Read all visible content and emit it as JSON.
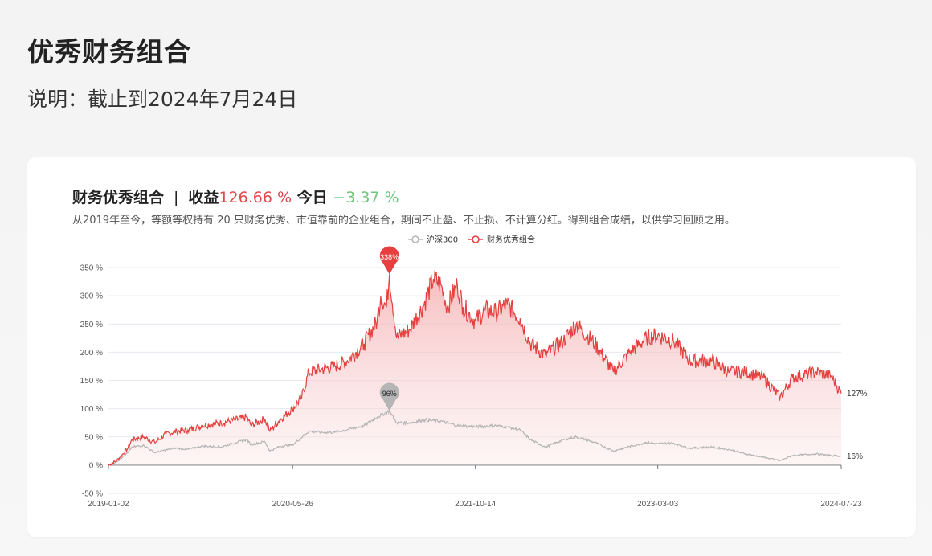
{
  "page": {
    "title": "优秀财务组合",
    "description": "说明：截止到2024年7月24日"
  },
  "header": {
    "name": "财务优秀组合",
    "separator": "|",
    "return_label": "收益",
    "return_value": "126.66 %",
    "today_label": "今日",
    "today_value": "−3.37 %",
    "subtitle": "从2019年至今，等额等权持有 20 只财务优秀、市值靠前的企业组合，期间不止盈、不止损、不计算分红。得到组合成绩，以供学习回顾之用。"
  },
  "colors": {
    "portfolio": "#e5403f",
    "benchmark": "#b5b5b5",
    "area_top": "#f4a6a8",
    "gridline": "#e6e9f0"
  },
  "chart_data": {
    "type": "area",
    "y_ticks": [
      "350 %",
      "300 %",
      "250 %",
      "200 %",
      "150 %",
      "100 %",
      "50 %",
      "0 %",
      "-50 %"
    ],
    "y_tick_values": [
      350,
      300,
      250,
      200,
      150,
      100,
      50,
      0,
      -50
    ],
    "ylim": [
      -50,
      350
    ],
    "x_ticks": [
      "2019-01-02",
      "2020-05-26",
      "2021-10-14",
      "2023-03-03",
      "2024-07-23"
    ],
    "xlim": [
      "2019-01-02",
      "2024-07-23"
    ],
    "grid": true,
    "legend_position": "top-center",
    "series": [
      {
        "name": "沪深300",
        "color_key": "benchmark",
        "end_label": "16%",
        "max_label": "96%",
        "points": [
          [
            "2019-01-02",
            0
          ],
          [
            "2019-01-25",
            6
          ],
          [
            "2019-02-25",
            22
          ],
          [
            "2019-03-08",
            32
          ],
          [
            "2019-04-10",
            35
          ],
          [
            "2019-05-10",
            22
          ],
          [
            "2019-06-10",
            27
          ],
          [
            "2019-07-10",
            30
          ],
          [
            "2019-08-10",
            28
          ],
          [
            "2019-09-20",
            34
          ],
          [
            "2019-11-10",
            32
          ],
          [
            "2019-12-20",
            40
          ],
          [
            "2020-01-20",
            45
          ],
          [
            "2020-02-01",
            36
          ],
          [
            "2020-03-10",
            42
          ],
          [
            "2020-03-24",
            25
          ],
          [
            "2020-04-20",
            33
          ],
          [
            "2020-05-26",
            36
          ],
          [
            "2020-07-10",
            60
          ],
          [
            "2020-08-15",
            58
          ],
          [
            "2020-09-20",
            58
          ],
          [
            "2020-10-25",
            63
          ],
          [
            "2020-12-10",
            70
          ],
          [
            "2021-01-15",
            85
          ],
          [
            "2021-02-18",
            96
          ],
          [
            "2021-03-10",
            75
          ],
          [
            "2021-04-15",
            75
          ],
          [
            "2021-05-25",
            80
          ],
          [
            "2021-07-10",
            78
          ],
          [
            "2021-08-25",
            70
          ],
          [
            "2021-10-14",
            68
          ],
          [
            "2021-12-10",
            70
          ],
          [
            "2022-01-10",
            68
          ],
          [
            "2022-02-15",
            62
          ],
          [
            "2022-03-15",
            45
          ],
          [
            "2022-04-26",
            32
          ],
          [
            "2022-06-15",
            45
          ],
          [
            "2022-07-20",
            50
          ],
          [
            "2022-09-10",
            40
          ],
          [
            "2022-10-31",
            25
          ],
          [
            "2022-12-15",
            33
          ],
          [
            "2023-01-31",
            40
          ],
          [
            "2023-03-03",
            38
          ],
          [
            "2023-04-15",
            39
          ],
          [
            "2023-05-31",
            30
          ],
          [
            "2023-07-31",
            32
          ],
          [
            "2023-09-15",
            28
          ],
          [
            "2023-10-31",
            20
          ],
          [
            "2023-12-20",
            14
          ],
          [
            "2024-02-05",
            8
          ],
          [
            "2024-03-10",
            17
          ],
          [
            "2024-05-15",
            20
          ],
          [
            "2024-06-25",
            17
          ],
          [
            "2024-07-23",
            16
          ]
        ]
      },
      {
        "name": "财务优秀组合",
        "color_key": "portfolio",
        "end_label": "127%",
        "max_label": "338%",
        "points": [
          [
            "2019-01-02",
            0
          ],
          [
            "2019-01-25",
            8
          ],
          [
            "2019-02-25",
            30
          ],
          [
            "2019-03-08",
            45
          ],
          [
            "2019-04-10",
            50
          ],
          [
            "2019-05-10",
            40
          ],
          [
            "2019-06-10",
            55
          ],
          [
            "2019-07-10",
            60
          ],
          [
            "2019-08-10",
            62
          ],
          [
            "2019-09-20",
            70
          ],
          [
            "2019-11-10",
            75
          ],
          [
            "2019-12-20",
            80
          ],
          [
            "2020-01-20",
            85
          ],
          [
            "2020-02-01",
            70
          ],
          [
            "2020-03-10",
            82
          ],
          [
            "2020-03-24",
            60
          ],
          [
            "2020-04-20",
            80
          ],
          [
            "2020-05-26",
            100
          ],
          [
            "2020-06-20",
            120
          ],
          [
            "2020-07-10",
            165
          ],
          [
            "2020-08-15",
            170
          ],
          [
            "2020-09-20",
            175
          ],
          [
            "2020-10-25",
            185
          ],
          [
            "2020-12-10",
            215
          ],
          [
            "2021-01-15",
            255
          ],
          [
            "2021-01-25",
            300
          ],
          [
            "2021-02-10",
            280
          ],
          [
            "2021-02-18",
            338
          ],
          [
            "2021-03-10",
            225
          ],
          [
            "2021-04-15",
            240
          ],
          [
            "2021-05-25",
            285
          ],
          [
            "2021-06-20",
            330
          ],
          [
            "2021-07-10",
            320
          ],
          [
            "2021-07-28",
            280
          ],
          [
            "2021-08-25",
            320
          ],
          [
            "2021-09-10",
            280
          ],
          [
            "2021-10-14",
            255
          ],
          [
            "2021-11-10",
            275
          ],
          [
            "2021-12-10",
            270
          ],
          [
            "2022-01-10",
            285
          ],
          [
            "2022-02-15",
            260
          ],
          [
            "2022-03-15",
            215
          ],
          [
            "2022-04-26",
            195
          ],
          [
            "2022-06-15",
            220
          ],
          [
            "2022-07-20",
            250
          ],
          [
            "2022-09-10",
            215
          ],
          [
            "2022-10-31",
            165
          ],
          [
            "2022-12-15",
            200
          ],
          [
            "2023-01-31",
            225
          ],
          [
            "2023-03-03",
            230
          ],
          [
            "2023-04-15",
            220
          ],
          [
            "2023-05-31",
            185
          ],
          [
            "2023-07-31",
            185
          ],
          [
            "2023-09-15",
            165
          ],
          [
            "2023-10-31",
            165
          ],
          [
            "2023-12-20",
            155
          ],
          [
            "2024-02-05",
            120
          ],
          [
            "2024-03-10",
            155
          ],
          [
            "2024-05-15",
            165
          ],
          [
            "2024-06-25",
            158
          ],
          [
            "2024-07-23",
            127
          ]
        ]
      }
    ]
  }
}
